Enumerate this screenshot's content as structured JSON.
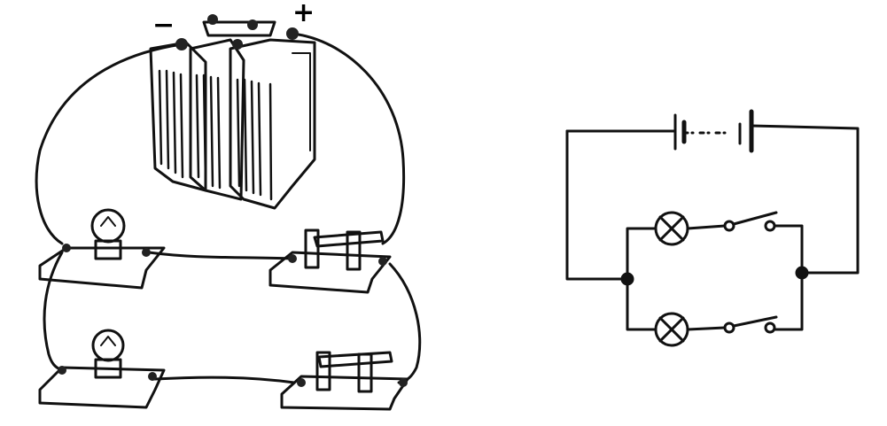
{
  "battery": {
    "negative_label": "−",
    "positive_label": "+"
  },
  "pictorial": {
    "bulbs": 2,
    "switches": 2,
    "cells": 3
  },
  "schematic": {
    "lamps": 2,
    "switches": 2,
    "junctions": 2,
    "cells": 2
  }
}
